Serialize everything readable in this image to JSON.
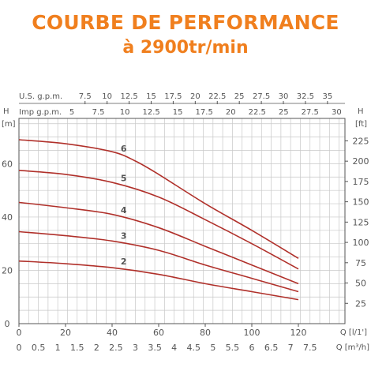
{
  "title": "COURBE DE PERFORMANCE",
  "subtitle": "à 2900tr/min",
  "chart_data": {
    "type": "line",
    "x_label": "Q [l/1']",
    "x_ticks": [
      "0",
      "20",
      "40",
      "60",
      "80",
      "100",
      "120"
    ],
    "x2_label": "Q [m³/h]",
    "x2_ticks": [
      "0",
      "0.5",
      "1",
      "1.5",
      "2",
      "2.5",
      "3",
      "3.5",
      "4",
      "4.5",
      "5",
      "5.5",
      "6",
      "6.5",
      "7",
      "7.5"
    ],
    "top1_label": "U.S. g.p.m.",
    "top1_ticks": [
      "7.5",
      "10",
      "12.5",
      "15",
      "17.5",
      "20",
      "22.5",
      "25",
      "27.5",
      "30",
      "32.5",
      "35"
    ],
    "top2_label": "Imp g.p.m.",
    "top2_ticks": [
      "5",
      "7.5",
      "10",
      "12.5",
      "15",
      "17.5",
      "20",
      "22.5",
      "25",
      "27.5",
      "30"
    ],
    "y_label": "H",
    "y_unit": "[m]",
    "y_ticks": [
      "0",
      "20",
      "40",
      "60"
    ],
    "y2_label": "H",
    "y2_unit": "[ft]",
    "y2_ticks": [
      "25",
      "50",
      "75",
      "100",
      "125",
      "150",
      "175",
      "200",
      "225"
    ],
    "xlim": [
      0,
      140
    ],
    "ylim": [
      0,
      77
    ],
    "grid": true,
    "line_color": "#b0302a",
    "series": [
      {
        "name": "2",
        "x": [
          0,
          20,
          40,
          60,
          80,
          100,
          120
        ],
        "y": [
          23.5,
          22.5,
          21,
          18.5,
          15,
          12,
          9
        ]
      },
      {
        "name": "3",
        "x": [
          0,
          20,
          40,
          60,
          80,
          100,
          120
        ],
        "y": [
          34.5,
          33,
          31,
          27.5,
          22,
          17,
          12
        ]
      },
      {
        "name": "4",
        "x": [
          0,
          20,
          40,
          60,
          80,
          100,
          120
        ],
        "y": [
          45.5,
          43.5,
          41,
          36,
          29,
          22,
          15
        ]
      },
      {
        "name": "5",
        "x": [
          0,
          20,
          40,
          60,
          80,
          100,
          120
        ],
        "y": [
          57.5,
          56,
          53,
          47.5,
          39,
          30,
          20.5
        ]
      },
      {
        "name": "6",
        "x": [
          0,
          20,
          40,
          50,
          60,
          80,
          100,
          120
        ],
        "y": [
          69,
          67.5,
          64.5,
          61,
          56,
          45,
          35,
          24.5
        ]
      }
    ]
  }
}
